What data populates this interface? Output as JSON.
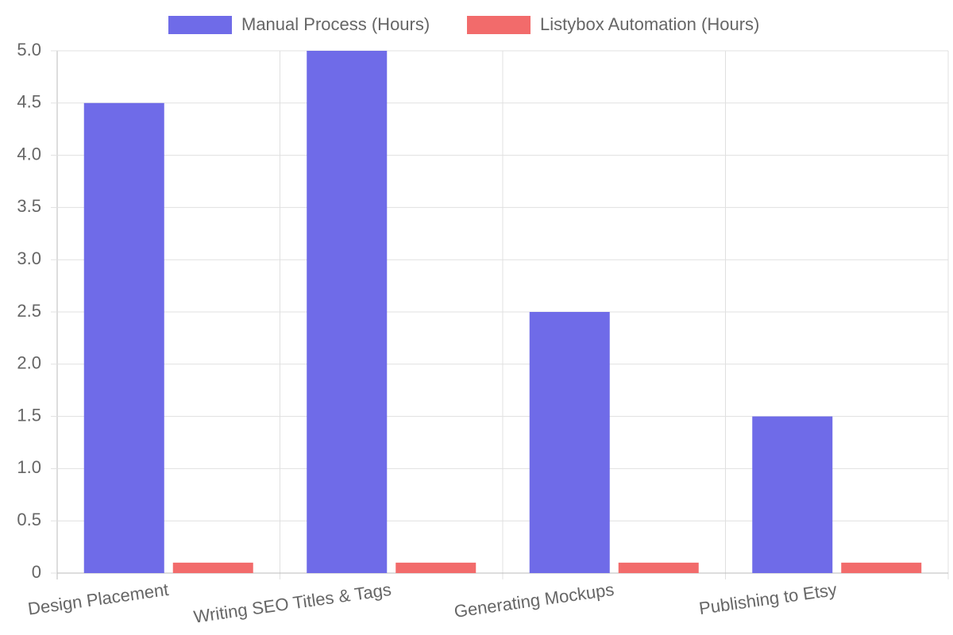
{
  "chart_data": {
    "type": "bar",
    "categories": [
      "Design Placement",
      "Writing SEO Titles & Tags",
      "Generating Mockups",
      "Publishing to Etsy"
    ],
    "series": [
      {
        "name": "Manual Process (Hours)",
        "color": "#6f6be8",
        "values": [
          4.5,
          5,
          2.5,
          1.5
        ]
      },
      {
        "name": "Listybox Automation (Hours)",
        "color": "#f26b6b",
        "values": [
          0.1,
          0.1,
          0.1,
          0.1
        ]
      }
    ],
    "ylim": [
      0,
      5
    ],
    "yticks": [
      0,
      0.5,
      {
        "value": 1,
        "label": "1.0"
      },
      1.5,
      {
        "value": 2,
        "label": "2.0"
      },
      2.5,
      {
        "value": 3,
        "label": "3.0"
      },
      3.5,
      {
        "value": 4,
        "label": "4.0"
      },
      4.5,
      {
        "value": 5,
        "label": "5.0"
      }
    ],
    "grid": true
  }
}
